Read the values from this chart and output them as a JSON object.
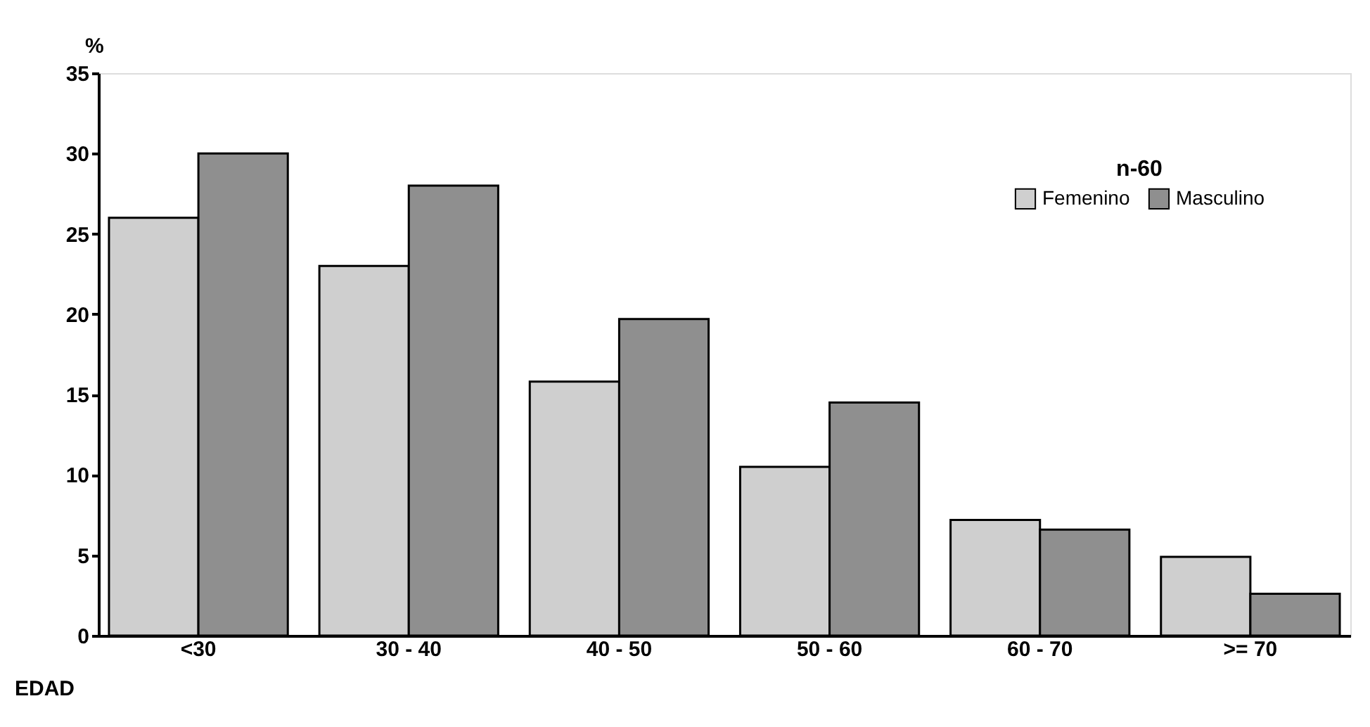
{
  "chart_data": {
    "type": "bar",
    "xlabel": "EDAD",
    "ylabel": "%",
    "legend_title": "n-60",
    "legend": "top right",
    "grid": false,
    "categories": [
      "<30",
      "30 - 40",
      "40 - 50",
      "50 - 60",
      "60 - 70",
      ">= 70"
    ],
    "series": [
      {
        "name": "Femenino",
        "color": "#cfcfcf",
        "values": [
          26,
          23,
          15.8,
          10.5,
          7.2,
          4.9
        ]
      },
      {
        "name": "Masculino",
        "color": "#8f8f8f",
        "values": [
          30,
          28,
          19.7,
          14.5,
          6.6,
          2.6
        ]
      }
    ],
    "ylim": [
      0,
      35
    ],
    "yticks": [
      0,
      5,
      10,
      15,
      20,
      25,
      30,
      35
    ]
  }
}
